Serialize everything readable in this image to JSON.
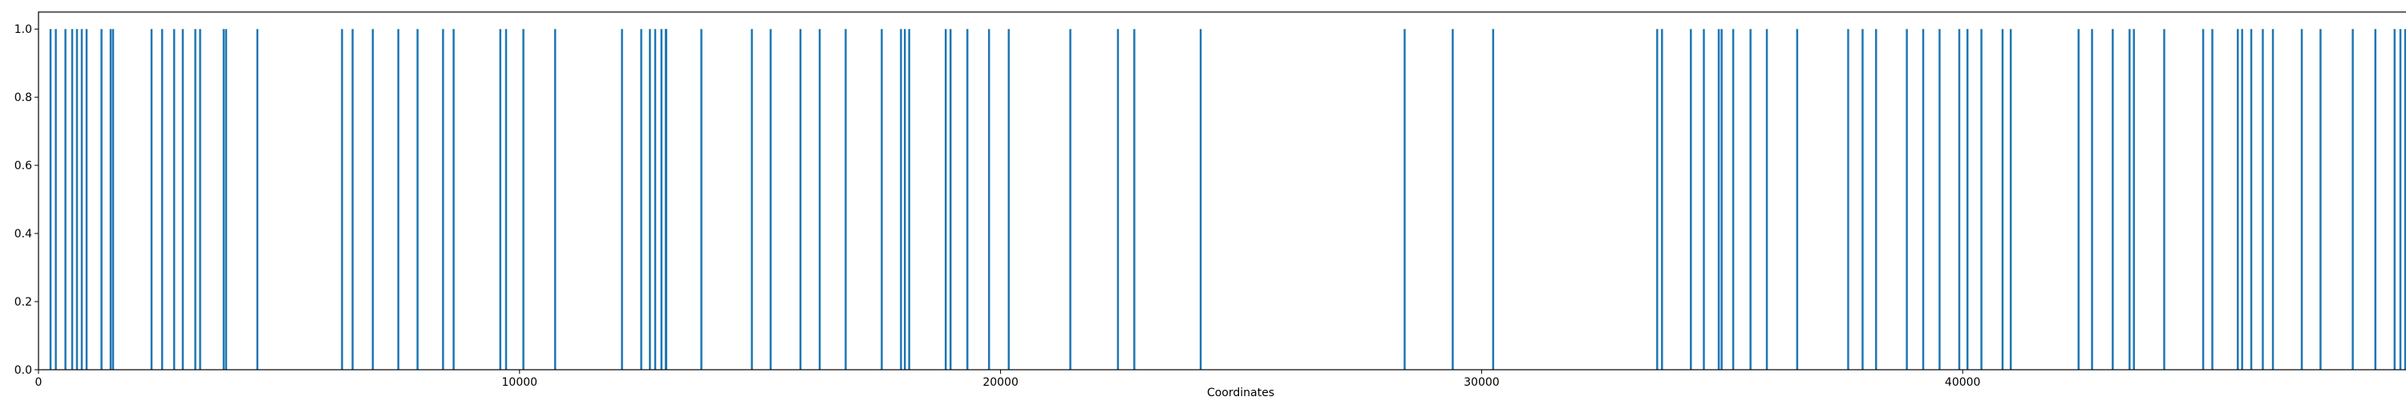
{
  "chart_data": {
    "type": "bar",
    "title": "",
    "xlabel": "Coordinates",
    "ylabel": "",
    "xlim": [
      0,
      50000
    ],
    "ylim": [
      0,
      1.05
    ],
    "grid": false,
    "bar_color": "#1f77b4",
    "x_ticks": [
      0,
      10000,
      20000,
      30000,
      40000,
      50000
    ],
    "y_ticks": [
      0.0,
      0.2,
      0.4,
      0.6,
      0.8,
      1.0
    ],
    "x_tick_labels": [
      "0",
      "10000",
      "20000",
      "30000",
      "40000",
      "50000"
    ],
    "y_tick_labels": [
      "0.0",
      "0.2",
      "0.4",
      "0.6",
      "0.8",
      "1.0"
    ],
    "x": [
      250,
      360,
      560,
      700,
      800,
      900,
      1000,
      1310,
      1500,
      1550,
      2350,
      2570,
      2820,
      3000,
      3260,
      3360,
      3850,
      3900,
      4550,
      6310,
      6530,
      6950,
      7480,
      7880,
      8410,
      8630,
      9600,
      9720,
      10080,
      10740,
      12130,
      12530,
      12710,
      12820,
      12950,
      13050,
      13040,
      13780,
      14830,
      15220,
      15840,
      16240,
      16780,
      17530,
      17930,
      18010,
      18100,
      18860,
      18960,
      19310,
      19760,
      20170,
      21450,
      22440,
      22780,
      24160,
      28400,
      29400,
      30240,
      33650,
      33750,
      34350,
      34620,
      34930,
      34990,
      35230,
      35590,
      35930,
      36560,
      37620,
      37920,
      38200,
      38840,
      39180,
      39520,
      39930,
      40100,
      40390,
      40830,
      41000,
      42410,
      42690,
      43120,
      43470,
      43560,
      44190,
      45000,
      45190,
      45720,
      45810,
      46000,
      46240,
      46450,
      47050,
      47440,
      48110,
      48580,
      48980,
      49100,
      49200,
      49730,
      49940
    ],
    "values": [
      1,
      1,
      1,
      1,
      1,
      1,
      1,
      1,
      1,
      1,
      1,
      1,
      1,
      1,
      1,
      1,
      1,
      1,
      1,
      1,
      1,
      1,
      1,
      1,
      1,
      1,
      1,
      1,
      1,
      1,
      1,
      1,
      1,
      1,
      1,
      1,
      1,
      1,
      1,
      1,
      1,
      1,
      1,
      1,
      1,
      1,
      1,
      1,
      1,
      1,
      1,
      1,
      1,
      1,
      1,
      1,
      1,
      1,
      1,
      1,
      1,
      1,
      1,
      1,
      1,
      1,
      1,
      1,
      1,
      1,
      1,
      1,
      1,
      1,
      1,
      1,
      1,
      1,
      1,
      1,
      1,
      1,
      1,
      1,
      1,
      1,
      1,
      1,
      1,
      1,
      1,
      1,
      1,
      1,
      1,
      1,
      1,
      1,
      1,
      1,
      1,
      1
    ]
  }
}
